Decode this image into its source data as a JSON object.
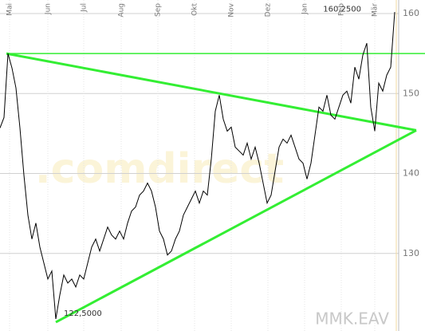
{
  "chart_data": {
    "type": "line",
    "title": "MMK.EAV",
    "watermark": ".comdirect",
    "annotations": [
      {
        "text": "160,2500",
        "x": 91,
        "y": 160.25
      },
      {
        "text": "122,5000",
        "x": 14.4,
        "y": 122.5
      }
    ],
    "color": "#000000",
    "x": [
      0,
      1,
      2,
      3,
      4,
      5,
      6,
      7,
      8,
      9,
      10,
      11,
      12,
      13,
      14,
      15,
      16,
      17,
      18,
      19,
      20,
      21,
      22,
      23,
      24,
      25,
      26,
      27,
      28,
      29,
      30,
      31,
      32,
      33,
      34,
      35,
      36,
      37,
      38,
      39,
      40,
      41,
      42,
      43,
      44,
      45,
      46,
      47,
      48,
      49,
      50,
      51,
      52,
      53,
      54,
      55,
      56,
      57,
      58,
      59,
      60,
      61,
      62,
      63,
      64,
      65,
      66,
      67,
      68,
      69,
      70,
      71,
      72,
      73,
      74,
      75,
      76,
      77,
      78,
      79,
      80,
      81,
      82,
      83,
      84,
      85,
      86,
      87,
      88,
      89,
      90,
      91,
      92,
      93,
      94,
      95,
      96,
      97,
      98,
      99
    ],
    "values": [
      145.7,
      147,
      155,
      153.2,
      150.7,
      145.7,
      139.8,
      134.8,
      131.8,
      133.8,
      130.8,
      128.8,
      126.8,
      127.8,
      121.8,
      124.8,
      127.3,
      126.3,
      126.8,
      125.8,
      127.3,
      126.8,
      128.8,
      130.8,
      131.8,
      130.3,
      131.8,
      133.3,
      132.3,
      131.8,
      132.8,
      131.8,
      133.8,
      135.3,
      135.8,
      137.3,
      137.8,
      138.8,
      137.8,
      135.8,
      132.8,
      131.8,
      129.8,
      130.3,
      131.8,
      132.8,
      134.8,
      135.8,
      136.8,
      137.8,
      136.3,
      137.8,
      137.3,
      141.8,
      147.8,
      149.8,
      146.8,
      145.3,
      145.8,
      143.3,
      142.8,
      142.3,
      143.8,
      141.8,
      143.3,
      141.3,
      138.8,
      136.3,
      137.3,
      140.3,
      143.3,
      144.3,
      143.8,
      144.8,
      143.3,
      141.8,
      141.3,
      139.3,
      141.3,
      144.8,
      148.3,
      147.8,
      149.8,
      147.3,
      146.8,
      148.3,
      149.8,
      150.3,
      148.8,
      153.3,
      151.8,
      154.8,
      156.3,
      148.3,
      145.3,
      151.3,
      150.3,
      152.3,
      153.3,
      160.2
    ],
    "trend_lines": [
      {
        "color": "#33ee33",
        "x": [
          1.6,
          106.6
        ],
        "values": [
          155.0,
          155.0
        ]
      },
      {
        "color": "#33ee33",
        "x": [
          1.6,
          104.4
        ],
        "values": [
          155.0,
          145.4
        ]
      },
      {
        "color": "#33ee33",
        "x": [
          14,
          104.4
        ],
        "values": [
          121.4,
          145.4
        ]
      }
    ],
    "xlim": [
      0,
      100
    ],
    "xticks": [
      {
        "value": 2.4,
        "label": "Mai"
      },
      {
        "value": 12,
        "label": "Jun"
      },
      {
        "value": 21,
        "label": "Jul"
      },
      {
        "value": 30.4,
        "label": "Aug"
      },
      {
        "value": 39.6,
        "label": "Sep"
      },
      {
        "value": 48.8,
        "label": "Okt"
      },
      {
        "value": 58,
        "label": "Nov"
      },
      {
        "value": 67.2,
        "label": "Dez"
      },
      {
        "value": 76.4,
        "label": "Jan"
      },
      {
        "value": 85.6,
        "label": "Feb"
      },
      {
        "value": 94,
        "label": "Mär"
      }
    ],
    "ylim": [
      120.3,
      161.7
    ],
    "yticks": [
      130,
      140,
      150,
      160
    ],
    "grid": true
  }
}
